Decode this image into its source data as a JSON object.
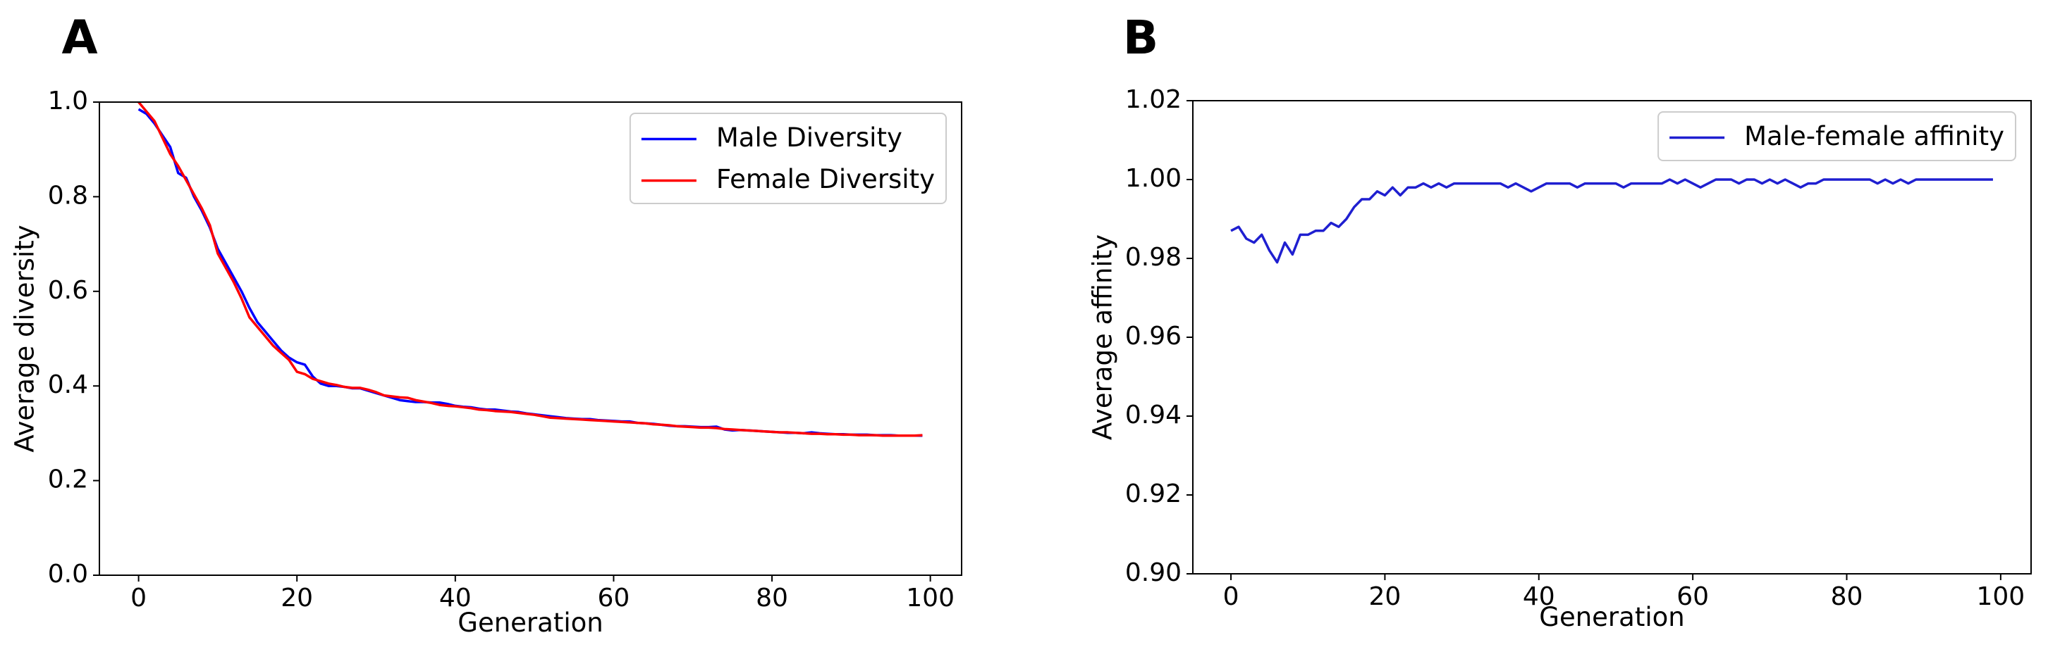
{
  "chart_data": [
    {
      "type": "line",
      "panel_label": "A",
      "xlabel": "Generation",
      "ylabel": "Average diversity",
      "x": [
        0,
        1,
        2,
        3,
        4,
        5,
        6,
        7,
        8,
        9,
        10,
        11,
        12,
        13,
        14,
        15,
        16,
        17,
        18,
        19,
        20,
        21,
        22,
        23,
        24,
        25,
        26,
        27,
        28,
        29,
        30,
        31,
        32,
        33,
        34,
        35,
        36,
        37,
        38,
        39,
        40,
        41,
        42,
        43,
        44,
        45,
        46,
        47,
        48,
        49,
        50,
        51,
        52,
        53,
        54,
        55,
        56,
        57,
        58,
        59,
        60,
        61,
        62,
        63,
        64,
        65,
        66,
        67,
        68,
        69,
        70,
        71,
        72,
        73,
        74,
        75,
        76,
        77,
        78,
        79,
        80,
        81,
        82,
        83,
        84,
        85,
        86,
        87,
        88,
        89,
        90,
        91,
        92,
        93,
        94,
        95,
        96,
        97,
        98,
        99
      ],
      "series": [
        {
          "name": "Male Diversity",
          "color": "#0000ff",
          "values": [
            0.985,
            0.975,
            0.955,
            0.93,
            0.905,
            0.85,
            0.84,
            0.8,
            0.77,
            0.735,
            0.69,
            0.66,
            0.63,
            0.6,
            0.565,
            0.535,
            0.515,
            0.495,
            0.475,
            0.46,
            0.45,
            0.445,
            0.42,
            0.405,
            0.4,
            0.4,
            0.398,
            0.395,
            0.395,
            0.39,
            0.385,
            0.38,
            0.375,
            0.37,
            0.368,
            0.366,
            0.366,
            0.365,
            0.365,
            0.362,
            0.358,
            0.356,
            0.355,
            0.352,
            0.35,
            0.35,
            0.348,
            0.346,
            0.345,
            0.342,
            0.34,
            0.338,
            0.336,
            0.334,
            0.332,
            0.331,
            0.33,
            0.33,
            0.328,
            0.327,
            0.326,
            0.325,
            0.325,
            0.322,
            0.321,
            0.32,
            0.318,
            0.316,
            0.315,
            0.315,
            0.314,
            0.313,
            0.313,
            0.314,
            0.308,
            0.306,
            0.307,
            0.306,
            0.305,
            0.304,
            0.303,
            0.302,
            0.301,
            0.301,
            0.3,
            0.302,
            0.3,
            0.299,
            0.298,
            0.298,
            0.297,
            0.297,
            0.297,
            0.296,
            0.296,
            0.296,
            0.295,
            0.295,
            0.295,
            0.295
          ]
        },
        {
          "name": "Female Diversity",
          "color": "#ff0000",
          "values": [
            1.0,
            0.98,
            0.96,
            0.925,
            0.89,
            0.865,
            0.835,
            0.805,
            0.775,
            0.74,
            0.68,
            0.65,
            0.62,
            0.585,
            0.545,
            0.525,
            0.505,
            0.485,
            0.47,
            0.455,
            0.43,
            0.425,
            0.415,
            0.41,
            0.405,
            0.402,
            0.398,
            0.396,
            0.396,
            0.392,
            0.387,
            0.38,
            0.378,
            0.376,
            0.375,
            0.37,
            0.367,
            0.364,
            0.36,
            0.358,
            0.357,
            0.355,
            0.353,
            0.35,
            0.349,
            0.347,
            0.346,
            0.345,
            0.343,
            0.341,
            0.339,
            0.336,
            0.333,
            0.332,
            0.331,
            0.33,
            0.329,
            0.328,
            0.327,
            0.326,
            0.325,
            0.324,
            0.323,
            0.322,
            0.321,
            0.319,
            0.318,
            0.317,
            0.315,
            0.314,
            0.313,
            0.312,
            0.312,
            0.311,
            0.309,
            0.308,
            0.307,
            0.306,
            0.305,
            0.304,
            0.303,
            0.302,
            0.302,
            0.301,
            0.3,
            0.299,
            0.299,
            0.298,
            0.298,
            0.297,
            0.297,
            0.296,
            0.296,
            0.296,
            0.295,
            0.295,
            0.295,
            0.295,
            0.295,
            0.296
          ]
        }
      ],
      "xlim": [
        -4.95,
        103.95
      ],
      "xticks": [
        0,
        20,
        40,
        60,
        80,
        100
      ],
      "ylim": [
        0.0,
        1.0
      ],
      "yticks": [
        {
          "value": 0,
          "label": "0.0"
        },
        0.2,
        0.4,
        0.6,
        0.8,
        {
          "value": 1,
          "label": "1.0"
        }
      ],
      "legend": "upper right"
    },
    {
      "type": "line",
      "panel_label": "B",
      "xlabel": "Generation",
      "ylabel": "Average affinity",
      "x": [
        0,
        1,
        2,
        3,
        4,
        5,
        6,
        7,
        8,
        9,
        10,
        11,
        12,
        13,
        14,
        15,
        16,
        17,
        18,
        19,
        20,
        21,
        22,
        23,
        24,
        25,
        26,
        27,
        28,
        29,
        30,
        31,
        32,
        33,
        34,
        35,
        36,
        37,
        38,
        39,
        40,
        41,
        42,
        43,
        44,
        45,
        46,
        47,
        48,
        49,
        50,
        51,
        52,
        53,
        54,
        55,
        56,
        57,
        58,
        59,
        60,
        61,
        62,
        63,
        64,
        65,
        66,
        67,
        68,
        69,
        70,
        71,
        72,
        73,
        74,
        75,
        76,
        77,
        78,
        79,
        80,
        81,
        82,
        83,
        84,
        85,
        86,
        87,
        88,
        89,
        90,
        91,
        92,
        93,
        94,
        95,
        96,
        97,
        98,
        99
      ],
      "series": [
        {
          "name": "Male-female affinity",
          "color": "#1f1fd0",
          "values": [
            0.987,
            0.988,
            0.985,
            0.984,
            0.986,
            0.982,
            0.979,
            0.984,
            0.981,
            0.986,
            0.986,
            0.987,
            0.987,
            0.989,
            0.988,
            0.99,
            0.993,
            0.995,
            0.995,
            0.997,
            0.996,
            0.998,
            0.996,
            0.998,
            0.998,
            0.999,
            0.998,
            0.999,
            0.998,
            0.999,
            0.999,
            0.999,
            0.999,
            0.999,
            0.999,
            0.999,
            0.998,
            0.999,
            0.998,
            0.997,
            0.998,
            0.999,
            0.999,
            0.999,
            0.999,
            0.998,
            0.999,
            0.999,
            0.999,
            0.999,
            0.999,
            0.998,
            0.999,
            0.999,
            0.999,
            0.999,
            0.999,
            1.0,
            0.999,
            1.0,
            0.999,
            0.998,
            0.999,
            1.0,
            1.0,
            1.0,
            0.999,
            1.0,
            1.0,
            0.999,
            1.0,
            0.999,
            1.0,
            0.999,
            0.998,
            0.999,
            0.999,
            1.0,
            1.0,
            1.0,
            1.0,
            1.0,
            1.0,
            1.0,
            0.999,
            1.0,
            0.999,
            1.0,
            0.999,
            1.0,
            1.0,
            1.0,
            1.0,
            1.0,
            1.0,
            1.0,
            1.0,
            1.0,
            1.0,
            1.0
          ]
        }
      ],
      "xlim": [
        -4.95,
        103.95
      ],
      "xticks": [
        0,
        20,
        40,
        60,
        80,
        100
      ],
      "ylim": [
        0.9,
        1.02
      ],
      "yticks": [
        {
          "value": 0.9,
          "label": "0.90"
        },
        0.92,
        0.94,
        0.96,
        0.98,
        {
          "value": 1,
          "label": "1.00"
        },
        1.02
      ],
      "legend": "upper right"
    }
  ]
}
